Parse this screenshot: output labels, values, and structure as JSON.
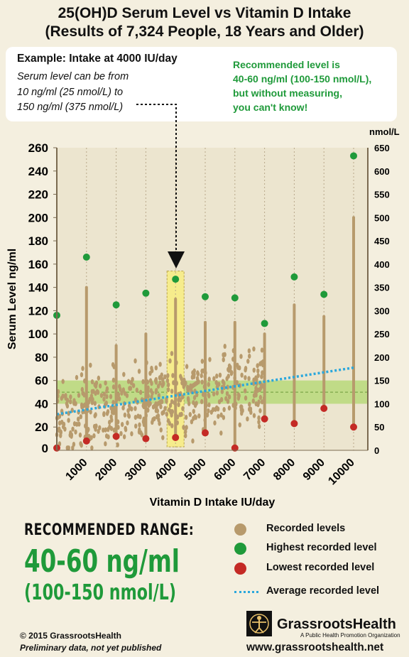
{
  "title_line1": "25(OH)D Serum Level vs Vitamin D Intake",
  "title_line2": "(Results of 7,324 People, 18 Years and Older)",
  "example": {
    "heading": "Example: Intake at 4000 IU/day",
    "line1": "Serum level can be from",
    "line2": "10 ng/ml (25 nmol/L) to",
    "line3": "150 ng/ml (375 nmol/L)"
  },
  "recommended_note": {
    "line1": "Recommended level is",
    "line2": "40-60 ng/ml (100-150 nmol/L),",
    "line3": "but without measuring,",
    "line4": "you can't know!"
  },
  "colors": {
    "recorded": "#b79a6c",
    "highest": "#1f9a3a",
    "lowest": "#c42a25",
    "average": "#2aa7dc",
    "band": "#b9d97a",
    "highlight": "#f6ec8c"
  },
  "chart_data": {
    "type": "scatter",
    "xlabel": "Vitamin D Intake IU/day",
    "ylabel": "Serum Level ng/ml",
    "y2label": "nmol/L",
    "xlim": [
      0,
      10500
    ],
    "ylim": [
      0,
      260
    ],
    "y2lim": [
      0,
      650
    ],
    "x_ticks": [
      1000,
      2000,
      3000,
      4000,
      5000,
      6000,
      7000,
      8000,
      9000,
      10000
    ],
    "y_ticks": [
      20,
      40,
      60,
      80,
      100,
      120,
      140,
      160,
      180,
      200,
      220,
      240,
      260
    ],
    "y2_ticks": [
      0,
      50,
      100,
      150,
      200,
      250,
      300,
      350,
      400,
      450,
      500,
      550,
      600,
      650
    ],
    "recommended_band": [
      40,
      60
    ],
    "highlight_x": 4000,
    "highest": {
      "name": "Highest recorded level",
      "x": [
        0,
        1000,
        2000,
        3000,
        4000,
        5000,
        6000,
        7000,
        8000,
        9000,
        10000
      ],
      "y": [
        116,
        166,
        125,
        135,
        147,
        132,
        131,
        109,
        149,
        134,
        253
      ]
    },
    "lowest": {
      "name": "Lowest recorded level",
      "x": [
        0,
        1000,
        2000,
        3000,
        4000,
        5000,
        6000,
        7000,
        8000,
        9000,
        10000
      ],
      "y": [
        2,
        8,
        12,
        10,
        11,
        15,
        2,
        27,
        23,
        36,
        20
      ]
    },
    "average": {
      "name": "Average recorded level",
      "x": [
        0,
        10000
      ],
      "y": [
        31,
        71
      ]
    },
    "recorded_columns": {
      "name": "Recorded levels",
      "x": [
        1000,
        2000,
        3000,
        4000,
        5000,
        6000,
        7000,
        8000,
        9000,
        10000
      ],
      "ymin": [
        8,
        12,
        10,
        11,
        15,
        2,
        27,
        23,
        36,
        20
      ],
      "ymax": [
        140,
        90,
        100,
        130,
        110,
        110,
        100,
        125,
        115,
        200
      ]
    }
  },
  "legend": {
    "recorded": "Recorded levels",
    "highest": "Highest recorded level",
    "lowest": "Lowest recorded level",
    "average": "Average recorded level"
  },
  "bottom": {
    "range_label": "RECOMMENDED RANGE:",
    "range_ng": "40-60 ng/ml",
    "range_nmol": "(100-150 nmol/L)",
    "copyright": "© 2015 GrassrootsHealth",
    "preliminary": "Preliminary data, not yet published",
    "logo_name": "GrassrootsHealth",
    "logo_sub": "A Public Health Promotion Organization",
    "url": "www.grassrootshealth.net"
  }
}
